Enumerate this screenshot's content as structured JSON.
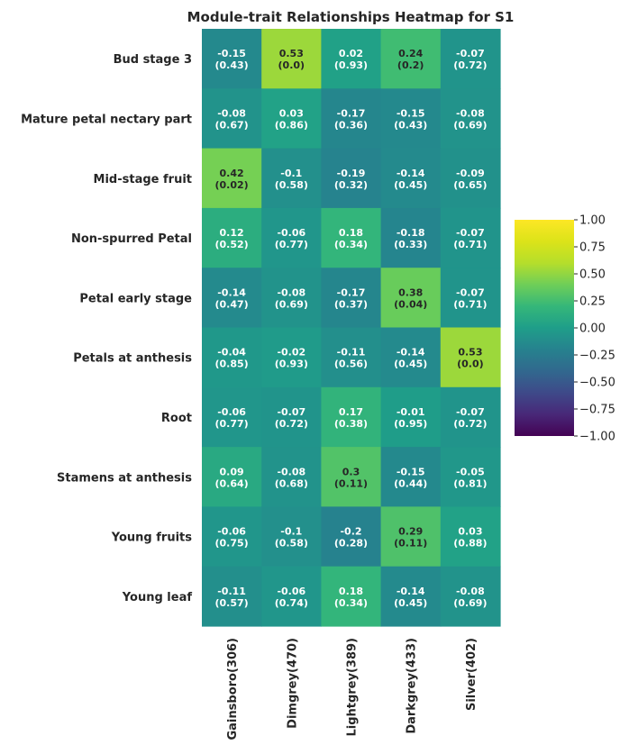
{
  "chart_data": {
    "type": "heatmap",
    "title": "Module-trait Relationships Heatmap for S1",
    "rows": [
      "Bud stage 3",
      "Mature petal nectary part",
      "Mid-stage fruit",
      "Non-spurred Petal",
      "Petal early stage",
      "Petals at anthesis",
      "Root",
      "Stamens at anthesis",
      "Young fruits",
      "Young leaf"
    ],
    "columns": [
      "Gainsboro(306)",
      "Dimgrey(470)",
      "Lightgrey(389)",
      "Darkgrey(433)",
      "Silver(402)"
    ],
    "values": [
      [
        -0.15,
        0.53,
        0.02,
        0.24,
        -0.07
      ],
      [
        -0.08,
        0.03,
        -0.17,
        -0.15,
        -0.08
      ],
      [
        0.42,
        -0.1,
        -0.19,
        -0.14,
        -0.09
      ],
      [
        0.12,
        -0.06,
        0.18,
        -0.18,
        -0.07
      ],
      [
        -0.14,
        -0.08,
        -0.17,
        0.38,
        -0.07
      ],
      [
        -0.04,
        -0.02,
        -0.11,
        -0.14,
        0.53
      ],
      [
        -0.06,
        -0.07,
        0.17,
        -0.01,
        -0.07
      ],
      [
        0.09,
        -0.08,
        0.3,
        -0.15,
        -0.05
      ],
      [
        -0.06,
        -0.1,
        -0.2,
        0.29,
        0.03
      ],
      [
        -0.11,
        -0.06,
        0.18,
        -0.14,
        -0.08
      ]
    ],
    "pvalues": [
      [
        "(0.43)",
        "(0.0)",
        "(0.93)",
        "(0.2)",
        "(0.72)"
      ],
      [
        "(0.67)",
        "(0.86)",
        "(0.36)",
        "(0.43)",
        "(0.69)"
      ],
      [
        "(0.02)",
        "(0.58)",
        "(0.32)",
        "(0.45)",
        "(0.65)"
      ],
      [
        "(0.52)",
        "(0.77)",
        "(0.34)",
        "(0.33)",
        "(0.71)"
      ],
      [
        "(0.47)",
        "(0.69)",
        "(0.37)",
        "(0.04)",
        "(0.71)"
      ],
      [
        "(0.85)",
        "(0.93)",
        "(0.56)",
        "(0.45)",
        "(0.0)"
      ],
      [
        "(0.77)",
        "(0.72)",
        "(0.38)",
        "(0.95)",
        "(0.72)"
      ],
      [
        "(0.64)",
        "(0.68)",
        "(0.11)",
        "(0.44)",
        "(0.81)"
      ],
      [
        "(0.75)",
        "(0.58)",
        "(0.28)",
        "(0.11)",
        "(0.88)"
      ],
      [
        "(0.57)",
        "(0.74)",
        "(0.34)",
        "(0.45)",
        "(0.69)"
      ]
    ],
    "colormap": "viridis",
    "vmin": -1.0,
    "vmax": 1.0,
    "colorbar_ticks": [
      "1.00",
      "0.75",
      "0.50",
      "0.25",
      "0.00",
      "−0.25",
      "−0.50",
      "−0.75",
      "−1.00"
    ],
    "colorbar_tick_values": [
      1.0,
      0.75,
      0.5,
      0.25,
      0.0,
      -0.25,
      -0.5,
      -0.75,
      -1.0
    ],
    "grid": false,
    "legend": "colorbar at right"
  }
}
